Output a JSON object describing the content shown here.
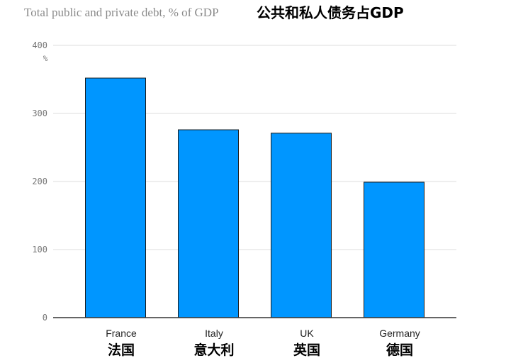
{
  "chart_data": {
    "type": "bar",
    "title": "Total public and private debt, % of GDP",
    "title_cn": "公共和私人债务占GDP",
    "unit": "%",
    "categories": [
      "France",
      "Italy",
      "UK",
      "Germany"
    ],
    "categories_cn": [
      "法国",
      "意大利",
      "英国",
      "德国"
    ],
    "values": [
      352,
      276,
      271,
      199
    ],
    "ylim": [
      0,
      400
    ],
    "yticks": [
      0,
      100,
      200,
      300,
      400
    ],
    "grid": true,
    "bar_color": "#0096ff",
    "bar_edge_color": "#1a1a1a"
  }
}
